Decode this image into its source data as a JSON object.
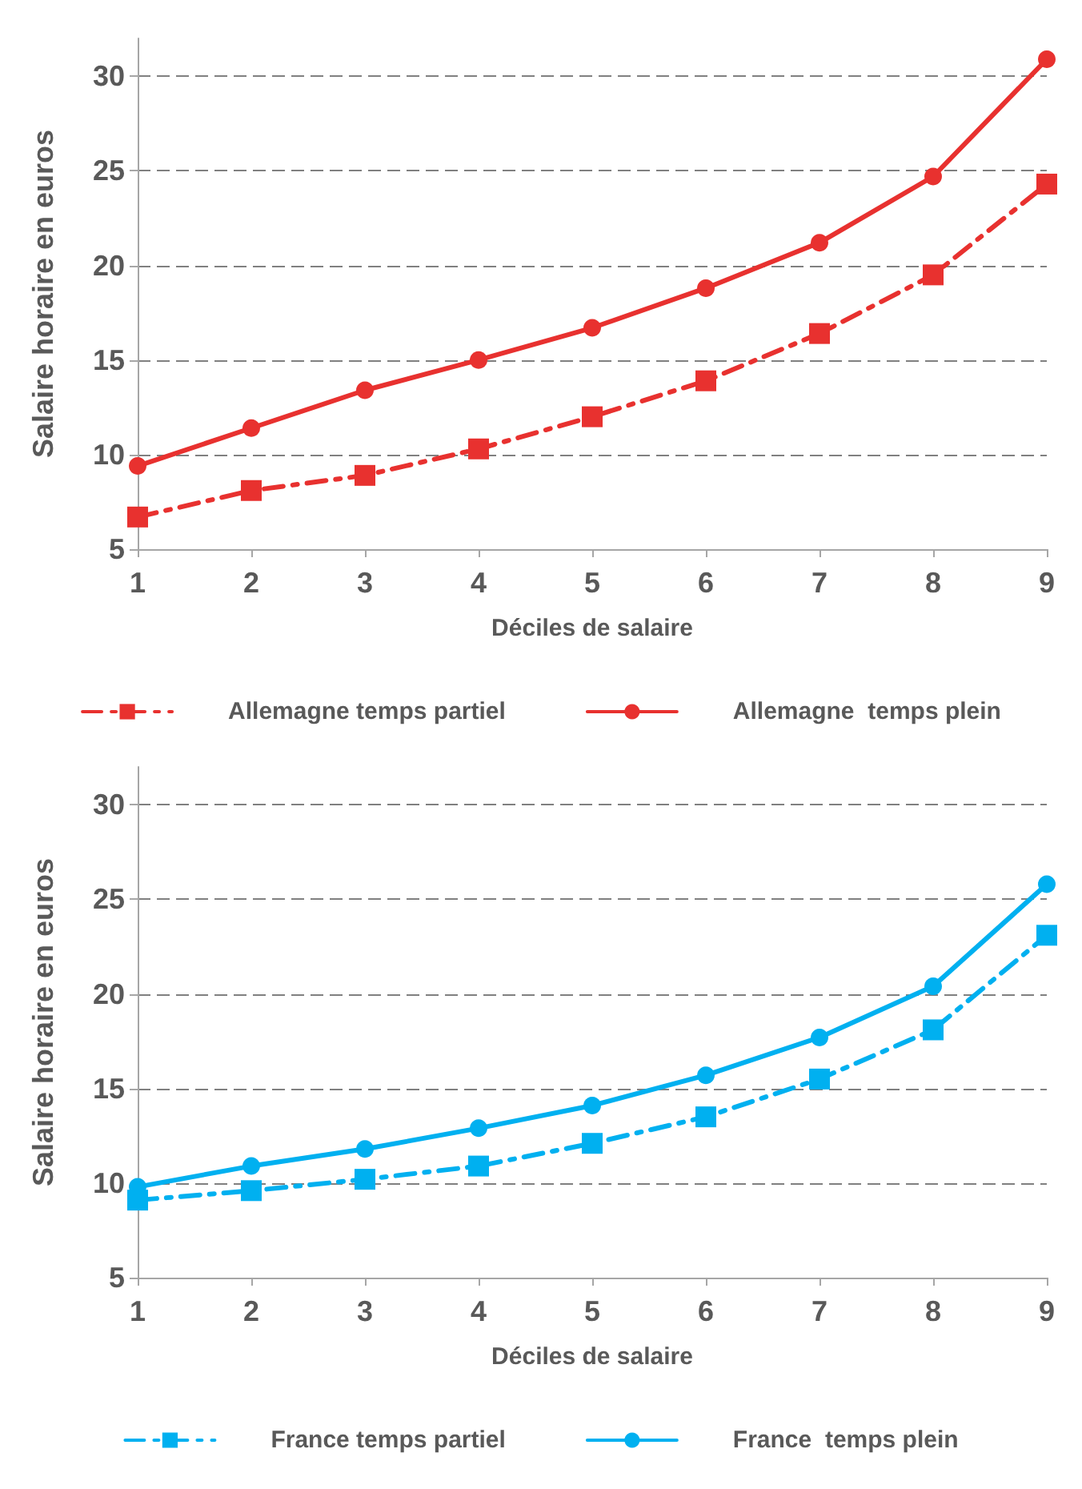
{
  "chart_data": [
    {
      "type": "line",
      "xlabel": "Déciles de salaire",
      "ylabel": "Salaire horaire en euros",
      "categories": [
        "1",
        "2",
        "3",
        "4",
        "5",
        "6",
        "7",
        "8",
        "9"
      ],
      "ylim": [
        5,
        32
      ],
      "yticks": [
        5,
        10,
        15,
        20,
        25,
        30
      ],
      "grid": "y",
      "legend": "bottom",
      "series": [
        {
          "name": "Allemagne temps partiel",
          "color": "#e8312f",
          "marker": "square",
          "line_style": "dashed",
          "values": [
            6.7,
            8.1,
            8.9,
            10.3,
            12.0,
            13.9,
            16.4,
            19.5,
            24.3
          ]
        },
        {
          "name": "Allemagne  temps plein",
          "color": "#e8312f",
          "marker": "circle",
          "line_style": "solid",
          "values": [
            9.4,
            11.4,
            13.4,
            15.0,
            16.7,
            18.8,
            21.2,
            24.7,
            30.9
          ]
        }
      ]
    },
    {
      "type": "line",
      "xlabel": "Déciles de salaire",
      "ylabel": "Salaire horaire en euros",
      "categories": [
        "1",
        "2",
        "3",
        "4",
        "5",
        "6",
        "7",
        "8",
        "9"
      ],
      "ylim": [
        5,
        32
      ],
      "yticks": [
        5,
        10,
        15,
        20,
        25,
        30
      ],
      "grid": "y",
      "legend": "bottom",
      "series": [
        {
          "name": "France temps partiel",
          "color": "#00b0f0",
          "marker": "square",
          "line_style": "dashed",
          "values": [
            9.1,
            9.6,
            10.2,
            10.9,
            12.1,
            13.5,
            15.5,
            18.1,
            23.1
          ]
        },
        {
          "name": "France  temps plein",
          "color": "#00b0f0",
          "marker": "circle",
          "line_style": "solid",
          "values": [
            9.8,
            10.9,
            11.8,
            12.9,
            14.1,
            15.7,
            17.7,
            20.4,
            25.8
          ]
        }
      ]
    }
  ]
}
